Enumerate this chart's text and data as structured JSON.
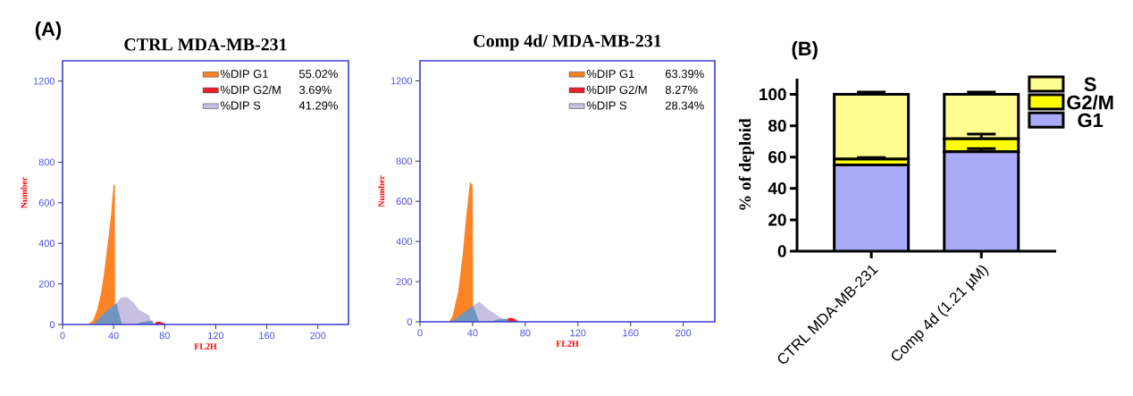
{
  "chart_data": [
    {
      "type": "area",
      "title": "CTRL MDA-MB-231",
      "xlabel": "FL2H",
      "ylabel": "Number",
      "xlim": [
        0,
        224
      ],
      "ylim": [
        0,
        1300
      ],
      "xticks": [
        0,
        40,
        80,
        120,
        160,
        200
      ],
      "yticks": [
        0,
        200,
        400,
        600,
        800,
        1200
      ],
      "legend": "top right",
      "annotations": [
        "(A)",
        "55.02%",
        "3.69%",
        "41.29%"
      ],
      "series": [
        {
          "name": "%DIP G1",
          "color": "#fd8327",
          "x": [
            20,
            24,
            27,
            30,
            32,
            34,
            36,
            38,
            39,
            40,
            41,
            41.2
          ],
          "values": [
            0,
            20,
            70,
            150,
            230,
            330,
            430,
            540,
            620,
            690,
            690,
            0
          ]
        },
        {
          "name": "%DIP G2/M",
          "color": "#e8202a",
          "x": [
            72,
            73,
            76,
            79,
            82
          ],
          "values": [
            0,
            12,
            14,
            8,
            0
          ]
        },
        {
          "name": "%DIP S",
          "color": "#c7c0e3",
          "x": [
            41,
            41.1,
            45.7,
            50.4,
            55,
            59.8,
            64.5,
            68,
            69.2,
            70
          ],
          "values": [
            0,
            96,
            133,
            136,
            111,
            74,
            56,
            44,
            7,
            0
          ]
        },
        {
          "color": "#7195bd",
          "x": [
            24.5,
            30,
            36,
            42.4,
            44.5,
            46.6
          ],
          "values": [
            0,
            40,
            75,
            105,
            50,
            0
          ]
        },
        {
          "color": "#7195bd",
          "x": [
            57,
            61,
            66,
            70,
            72
          ],
          "values": [
            0,
            10,
            16,
            20,
            0
          ]
        }
      ]
    },
    {
      "type": "area",
      "title": "Comp 4d/ MDA-MB-231",
      "xlabel": "FL2H",
      "ylabel": "Number",
      "xlim": [
        0,
        224
      ],
      "ylim": [
        0,
        1300
      ],
      "xticks": [
        0,
        40,
        80,
        120,
        160,
        200
      ],
      "yticks": [
        0,
        200,
        400,
        600,
        800,
        1200
      ],
      "legend": "top right",
      "annotations": [
        "63.39%",
        "8.27%",
        "28.34%"
      ],
      "series": [
        {
          "name": "%DIP G1",
          "color": "#fd8327",
          "x": [
            22.3,
            24.8,
            29,
            32.4,
            34.9,
            38,
            40,
            40.5
          ],
          "values": [
            0,
            30,
            150,
            330,
            510,
            698,
            680,
            0
          ]
        },
        {
          "name": "%DIP G2/M",
          "color": "#e8202a",
          "x": [
            65,
            67,
            70,
            73,
            75
          ],
          "values": [
            0,
            18,
            20,
            10,
            0
          ]
        },
        {
          "name": "%DIP S",
          "color": "#c7c0e3",
          "x": [
            40.5,
            40.6,
            45,
            51.8,
            58.5,
            63,
            65
          ],
          "values": [
            0,
            80,
            100,
            62,
            33,
            12,
            0
          ]
        },
        {
          "color": "#7195bd",
          "x": [
            23.6,
            30,
            35,
            40.5,
            43,
            45
          ],
          "values": [
            0,
            30,
            55,
            80,
            35,
            0
          ]
        },
        {
          "color": "#7195bd",
          "x": [
            54,
            58,
            62,
            66,
            68
          ],
          "values": [
            0,
            10,
            15,
            15,
            0
          ]
        }
      ]
    },
    {
      "type": "bar",
      "stacked": true,
      "ylabel": "% of deploid",
      "categories": [
        "CTRL MDA-MB-231",
        "Comp 4d (1.21 µM)"
      ],
      "ylim": [
        0,
        110
      ],
      "yticks": [
        0,
        20,
        40,
        60,
        80,
        100
      ],
      "legend": "top right",
      "annotations": [
        "(B)"
      ],
      "series": [
        {
          "name": "G1",
          "color": "#aaaaf8",
          "values": [
            55.0,
            63.4
          ],
          "errors": [
            null,
            2
          ]
        },
        {
          "name": "G2/M",
          "color": "#ffff00",
          "values": [
            3.7,
            8.3
          ],
          "errors": [
            1,
            3
          ]
        },
        {
          "name": "S",
          "color": "#fdfd90",
          "values": [
            41.3,
            28.3
          ],
          "errors": [
            1.5,
            1.5
          ]
        }
      ]
    }
  ]
}
